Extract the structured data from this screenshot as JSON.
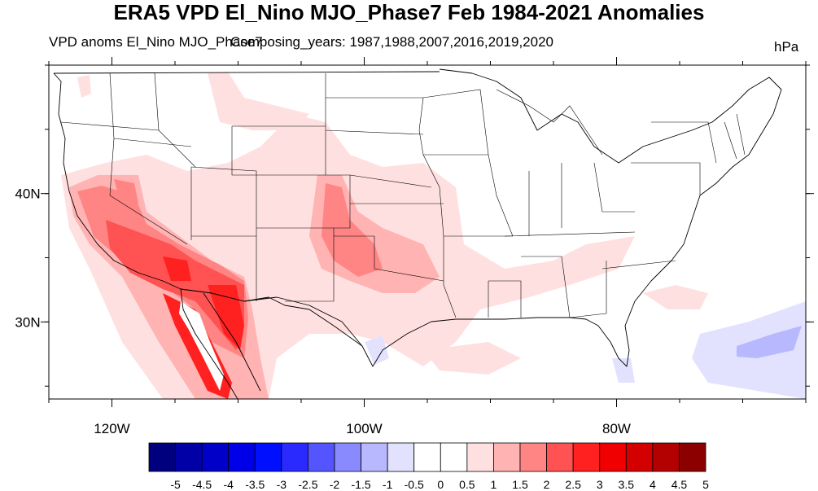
{
  "title": "ERA5 VPD El_Nino MJO_Phase7 Feb 1984-2021 Anomalies",
  "subtitle_left": "VPD anoms El_Nino MJO_Phase7",
  "subtitle_center": "Composing_years: 1987,1988,2007,2016,2019,2020",
  "subtitle_right": "hPa",
  "lon_ticks": [
    {
      "value": -120,
      "label": "120W"
    },
    {
      "value": -100,
      "label": "100W"
    },
    {
      "value": -80,
      "label": "80W"
    }
  ],
  "lat_ticks": [
    {
      "value": 40,
      "label": "40N"
    },
    {
      "value": 30,
      "label": "30N"
    }
  ],
  "map_extent": {
    "lon_min": -125,
    "lon_max": -65,
    "lat_min": 24,
    "lat_max": 50
  },
  "colorbar": {
    "labels": [
      "-5",
      "-4.5",
      "-4",
      "-3.5",
      "-3",
      "-2.5",
      "-2",
      "-1.5",
      "-1",
      "-0.5",
      "0",
      "0.5",
      "1",
      "1.5",
      "2",
      "2.5",
      "3",
      "3.5",
      "4",
      "4.5",
      "5"
    ],
    "colors": [
      "#00007f",
      "#0000a6",
      "#0000c8",
      "#0000e8",
      "#0010ff",
      "#2a2aff",
      "#5555ff",
      "#8a8aff",
      "#b8b8ff",
      "#e2e2ff",
      "#ffffff",
      "#ffffff",
      "#ffe0e0",
      "#ffb3b3",
      "#ff8585",
      "#ff5252",
      "#ff2020",
      "#f00000",
      "#d40000",
      "#b30000",
      "#8c0000"
    ]
  }
}
